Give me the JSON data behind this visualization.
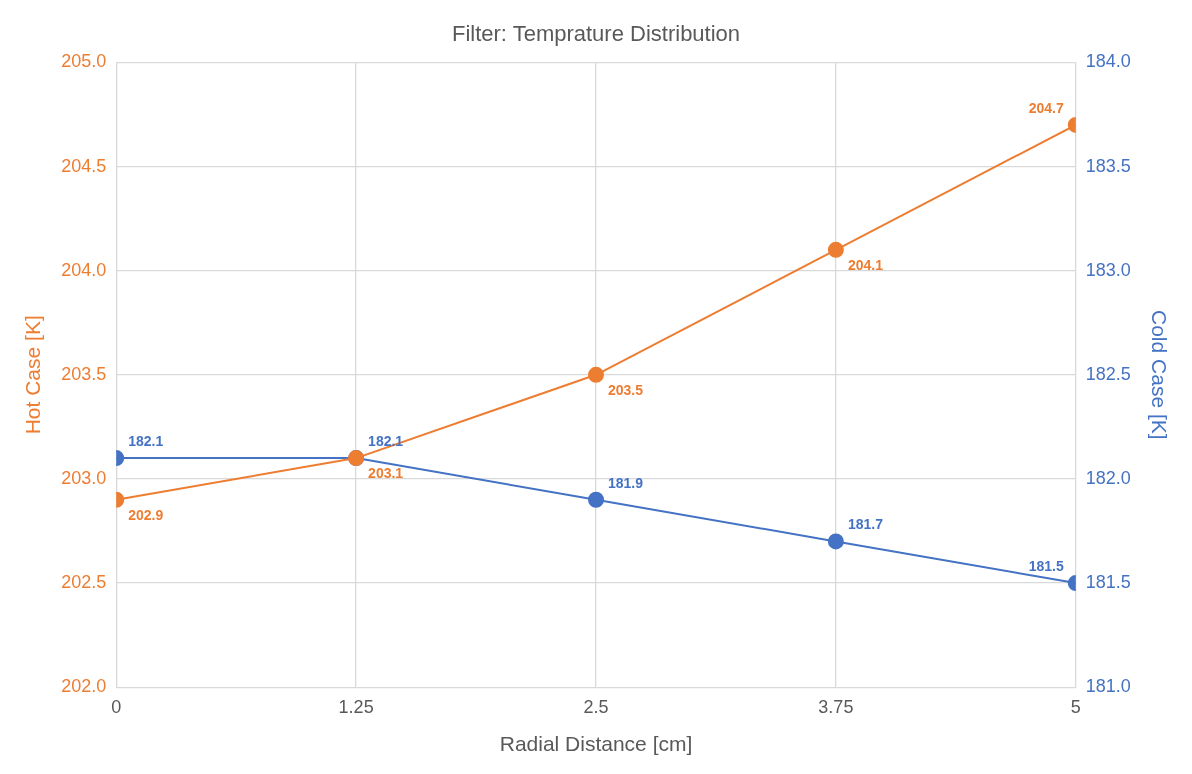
{
  "chart_data": {
    "type": "line",
    "title": "Filter: Temprature Distribution",
    "xlabel": "Radial Distance [cm]",
    "ylabel": "Hot Case [K]",
    "y2label": "Cold Case [K]",
    "x": [
      0,
      1.25,
      2.5,
      3.75,
      5
    ],
    "xlim": [
      0,
      5
    ],
    "xticks": [
      0,
      1.25,
      2.5,
      3.75,
      5
    ],
    "ylim": [
      202,
      205
    ],
    "yticks": [
      {
        "value": 202,
        "label": "202.0"
      },
      202.5,
      {
        "value": 203,
        "label": "203.0"
      },
      203.5,
      {
        "value": 204,
        "label": "204.0"
      },
      204.5,
      {
        "value": 205,
        "label": "205.0"
      }
    ],
    "y2lim": [
      181,
      184
    ],
    "y2ticks": [
      {
        "value": 181,
        "label": "181.0"
      },
      181.5,
      {
        "value": 182,
        "label": "182.0"
      },
      182.5,
      {
        "value": 183,
        "label": "183.0"
      },
      183.5,
      {
        "value": 184,
        "label": "184.0"
      }
    ],
    "series": [
      {
        "color": "#ed7d31",
        "values": [
          202.9,
          203.1,
          203.5,
          204.1,
          204.7
        ]
      },
      {
        "color": "#4472c4",
        "axis": "y2",
        "values": [
          182.1,
          182.1,
          181.9,
          181.7,
          181.5
        ]
      }
    ],
    "data_labels": true,
    "grid": true,
    "legend": false,
    "marker": "circle",
    "line_style": "solid"
  }
}
